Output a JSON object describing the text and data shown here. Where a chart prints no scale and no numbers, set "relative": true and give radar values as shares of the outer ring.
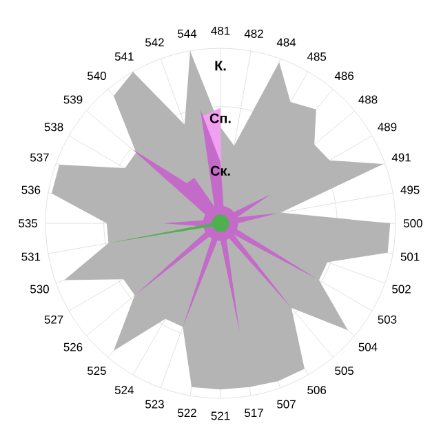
{
  "chart_data": {
    "type": "radar",
    "relative": true,
    "grid": true,
    "categories": [
      "481",
      "482",
      "484",
      "485",
      "486",
      "488",
      "489",
      "491",
      "495",
      "500",
      "501",
      "502",
      "503",
      "504",
      "505",
      "506",
      "507",
      "517",
      "521",
      "522",
      "523",
      "524",
      "525",
      "526",
      "527",
      "530",
      "531",
      "535",
      "536",
      "537",
      "538",
      "539",
      "540",
      "541",
      "542",
      "544"
    ],
    "series": [
      {
        "name": "К.",
        "color": "#b4b4b4",
        "values": [
          0.55,
          0.45,
          0.98,
          0.8,
          0.85,
          0.7,
          0.72,
          0.99,
          0.35,
          0.97,
          0.97,
          0.65,
          0.65,
          0.95,
          0.63,
          0.96,
          0.96,
          0.95,
          0.95,
          0.95,
          0.63,
          0.63,
          0.95,
          0.64,
          0.64,
          0.95,
          0.65,
          0.65,
          0.98,
          0.98,
          0.63,
          0.63,
          0.95,
          1.0,
          0.6,
          1.0
        ]
      },
      {
        "name": "Сп.",
        "color": "#f0a0f0",
        "values": [
          0.66,
          0.05,
          0.05,
          0.05,
          0.05,
          0.05,
          0.05,
          0.05,
          0.05,
          0.05,
          0.05,
          0.05,
          0.05,
          0.05,
          0.05,
          0.05,
          0.05,
          0.05,
          0.05,
          0.05,
          0.05,
          0.05,
          0.05,
          0.05,
          0.05,
          0.05,
          0.05,
          0.05,
          0.05,
          0.05,
          0.05,
          0.05,
          0.05,
          0.05,
          0.05,
          0.62
        ]
      },
      {
        "name": "Ск.",
        "color": "#c46ac8",
        "values": [
          0.35,
          0.1,
          0.1,
          0.1,
          0.1,
          0.1,
          0.33,
          0.1,
          0.33,
          0.1,
          0.1,
          0.1,
          0.64,
          0.1,
          0.63,
          0.1,
          0.1,
          0.63,
          0.1,
          0.1,
          0.63,
          0.1,
          0.1,
          0.63,
          0.1,
          0.1,
          0.1,
          0.33,
          0.1,
          0.1,
          0.1,
          0.66,
          0.3,
          0.3,
          0.1,
          0.66
        ]
      },
      {
        "color": "#50b050",
        "values": [
          0.05,
          0.05,
          0.05,
          0.05,
          0.05,
          0.05,
          0.05,
          0.05,
          0.05,
          0.05,
          0.05,
          0.05,
          0.05,
          0.05,
          0.05,
          0.05,
          0.05,
          0.05,
          0.05,
          0.05,
          0.05,
          0.05,
          0.05,
          0.05,
          0.05,
          0.05,
          0.65,
          0.05,
          0.05,
          0.05,
          0.05,
          0.05,
          0.05,
          0.05,
          0.05,
          0.05
        ]
      }
    ]
  }
}
